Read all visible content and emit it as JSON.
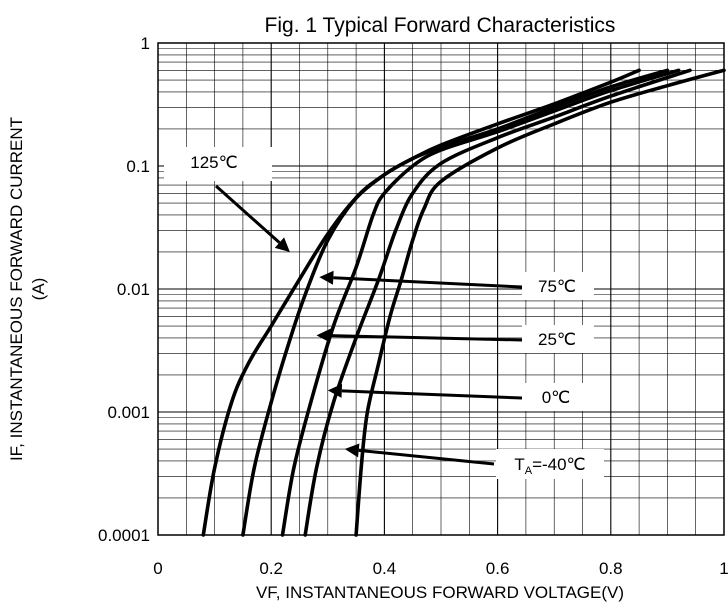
{
  "chart_data": {
    "type": "line",
    "title": "Fig. 1 Typical Forward Characteristics",
    "xlabel": "VF, INSTANTANEOUS FORWARD VOLTAGE(V)",
    "ylabel_line1": "IF, INSTANTANEOUS FORWARD CURRENT",
    "ylabel_line2": "(A)",
    "xlim": [
      0,
      1
    ],
    "ylim": [
      0.0001,
      1
    ],
    "yscale": "log",
    "grid": true,
    "x_ticks": [
      0,
      0.2,
      0.4,
      0.6,
      0.8,
      1
    ],
    "x_tick_labels": [
      "0",
      "0.2",
      "0.4",
      "0.6",
      "0.8",
      "1"
    ],
    "y_ticks": [
      0.0001,
      0.001,
      0.01,
      0.1,
      1
    ],
    "y_tick_labels": [
      "0.0001",
      "0.001",
      "0.01",
      "0.1",
      "1"
    ],
    "series": [
      {
        "name": "125℃",
        "points": [
          [
            0.08,
            0.0001
          ],
          [
            0.1,
            0.00035
          ],
          [
            0.13,
            0.0012
          ],
          [
            0.16,
            0.0025
          ],
          [
            0.2,
            0.005
          ],
          [
            0.25,
            0.012
          ],
          [
            0.3,
            0.028
          ],
          [
            0.35,
            0.055
          ],
          [
            0.4,
            0.085
          ],
          [
            0.45,
            0.115
          ],
          [
            0.5,
            0.148
          ],
          [
            0.6,
            0.22
          ],
          [
            0.7,
            0.32
          ],
          [
            0.8,
            0.48
          ],
          [
            0.85,
            0.6
          ]
        ]
      },
      {
        "name": "75℃",
        "points": [
          [
            0.15,
            0.0001
          ],
          [
            0.17,
            0.00035
          ],
          [
            0.2,
            0.0012
          ],
          [
            0.23,
            0.0035
          ],
          [
            0.26,
            0.009
          ],
          [
            0.3,
            0.025
          ],
          [
            0.35,
            0.055
          ],
          [
            0.4,
            0.085
          ],
          [
            0.45,
            0.115
          ],
          [
            0.5,
            0.142
          ],
          [
            0.6,
            0.2
          ],
          [
            0.7,
            0.3
          ],
          [
            0.8,
            0.44
          ],
          [
            0.9,
            0.6
          ]
        ]
      },
      {
        "name": "25℃",
        "points": [
          [
            0.22,
            0.0001
          ],
          [
            0.24,
            0.00035
          ],
          [
            0.27,
            0.0012
          ],
          [
            0.31,
            0.005
          ],
          [
            0.35,
            0.015
          ],
          [
            0.38,
            0.04
          ],
          [
            0.4,
            0.06
          ],
          [
            0.45,
            0.1
          ],
          [
            0.5,
            0.135
          ],
          [
            0.6,
            0.19
          ],
          [
            0.7,
            0.28
          ],
          [
            0.8,
            0.41
          ],
          [
            0.92,
            0.6
          ]
        ]
      },
      {
        "name": "0℃",
        "points": [
          [
            0.26,
            0.0001
          ],
          [
            0.28,
            0.00035
          ],
          [
            0.31,
            0.0012
          ],
          [
            0.35,
            0.004
          ],
          [
            0.39,
            0.012
          ],
          [
            0.42,
            0.03
          ],
          [
            0.45,
            0.06
          ],
          [
            0.5,
            0.105
          ],
          [
            0.6,
            0.17
          ],
          [
            0.7,
            0.25
          ],
          [
            0.8,
            0.37
          ],
          [
            0.94,
            0.6
          ]
        ]
      },
      {
        "name": "T_A=-40℃",
        "points": [
          [
            0.35,
            0.0001
          ],
          [
            0.36,
            0.0004
          ],
          [
            0.37,
            0.001
          ],
          [
            0.39,
            0.0025
          ],
          [
            0.41,
            0.006
          ],
          [
            0.43,
            0.012
          ],
          [
            0.45,
            0.025
          ],
          [
            0.47,
            0.045
          ],
          [
            0.5,
            0.075
          ],
          [
            0.6,
            0.14
          ],
          [
            0.7,
            0.22
          ],
          [
            0.8,
            0.33
          ],
          [
            0.9,
            0.45
          ],
          [
            1.0,
            0.6
          ]
        ]
      }
    ],
    "annotations": [
      "125℃",
      "75℃",
      "25℃",
      "0℃"
    ],
    "annotation_ta": {
      "main": "T",
      "sub": "A",
      "rest": "=-40℃"
    }
  }
}
